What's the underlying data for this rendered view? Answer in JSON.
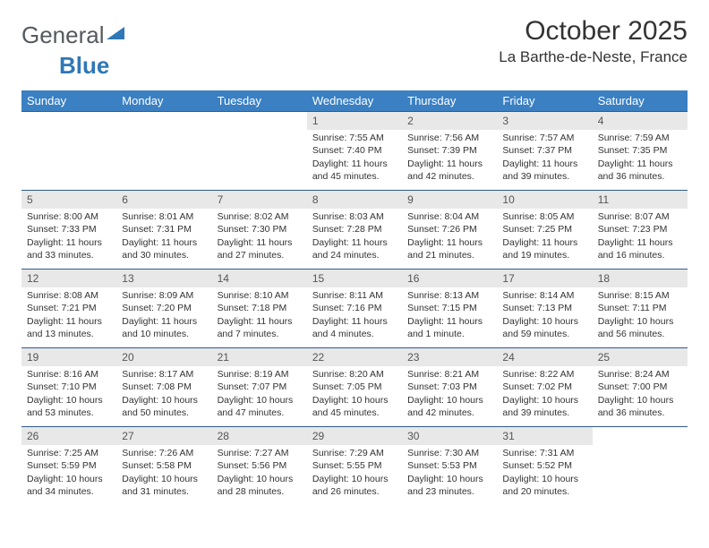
{
  "brand": {
    "general": "General",
    "blue": "Blue"
  },
  "title": {
    "month": "October 2025",
    "location": "La Barthe-de-Neste, France"
  },
  "colors": {
    "header_bg": "#3a80c3",
    "header_text": "#ffffff",
    "daynum_bg": "#e8e8e8",
    "row_border": "#2f5a8a",
    "body_text": "#333333",
    "logo_gray": "#555a5f",
    "logo_blue": "#2f78b7"
  },
  "weekdays": [
    "Sunday",
    "Monday",
    "Tuesday",
    "Wednesday",
    "Thursday",
    "Friday",
    "Saturday"
  ],
  "weeks": [
    [
      {
        "n": "",
        "empty": true
      },
      {
        "n": "",
        "empty": true
      },
      {
        "n": "",
        "empty": true
      },
      {
        "n": "1",
        "sunrise": "Sunrise: 7:55 AM",
        "sunset": "Sunset: 7:40 PM",
        "daylight": "Daylight: 11 hours and 45 minutes."
      },
      {
        "n": "2",
        "sunrise": "Sunrise: 7:56 AM",
        "sunset": "Sunset: 7:39 PM",
        "daylight": "Daylight: 11 hours and 42 minutes."
      },
      {
        "n": "3",
        "sunrise": "Sunrise: 7:57 AM",
        "sunset": "Sunset: 7:37 PM",
        "daylight": "Daylight: 11 hours and 39 minutes."
      },
      {
        "n": "4",
        "sunrise": "Sunrise: 7:59 AM",
        "sunset": "Sunset: 7:35 PM",
        "daylight": "Daylight: 11 hours and 36 minutes."
      }
    ],
    [
      {
        "n": "5",
        "sunrise": "Sunrise: 8:00 AM",
        "sunset": "Sunset: 7:33 PM",
        "daylight": "Daylight: 11 hours and 33 minutes."
      },
      {
        "n": "6",
        "sunrise": "Sunrise: 8:01 AM",
        "sunset": "Sunset: 7:31 PM",
        "daylight": "Daylight: 11 hours and 30 minutes."
      },
      {
        "n": "7",
        "sunrise": "Sunrise: 8:02 AM",
        "sunset": "Sunset: 7:30 PM",
        "daylight": "Daylight: 11 hours and 27 minutes."
      },
      {
        "n": "8",
        "sunrise": "Sunrise: 8:03 AM",
        "sunset": "Sunset: 7:28 PM",
        "daylight": "Daylight: 11 hours and 24 minutes."
      },
      {
        "n": "9",
        "sunrise": "Sunrise: 8:04 AM",
        "sunset": "Sunset: 7:26 PM",
        "daylight": "Daylight: 11 hours and 21 minutes."
      },
      {
        "n": "10",
        "sunrise": "Sunrise: 8:05 AM",
        "sunset": "Sunset: 7:25 PM",
        "daylight": "Daylight: 11 hours and 19 minutes."
      },
      {
        "n": "11",
        "sunrise": "Sunrise: 8:07 AM",
        "sunset": "Sunset: 7:23 PM",
        "daylight": "Daylight: 11 hours and 16 minutes."
      }
    ],
    [
      {
        "n": "12",
        "sunrise": "Sunrise: 8:08 AM",
        "sunset": "Sunset: 7:21 PM",
        "daylight": "Daylight: 11 hours and 13 minutes."
      },
      {
        "n": "13",
        "sunrise": "Sunrise: 8:09 AM",
        "sunset": "Sunset: 7:20 PM",
        "daylight": "Daylight: 11 hours and 10 minutes."
      },
      {
        "n": "14",
        "sunrise": "Sunrise: 8:10 AM",
        "sunset": "Sunset: 7:18 PM",
        "daylight": "Daylight: 11 hours and 7 minutes."
      },
      {
        "n": "15",
        "sunrise": "Sunrise: 8:11 AM",
        "sunset": "Sunset: 7:16 PM",
        "daylight": "Daylight: 11 hours and 4 minutes."
      },
      {
        "n": "16",
        "sunrise": "Sunrise: 8:13 AM",
        "sunset": "Sunset: 7:15 PM",
        "daylight": "Daylight: 11 hours and 1 minute."
      },
      {
        "n": "17",
        "sunrise": "Sunrise: 8:14 AM",
        "sunset": "Sunset: 7:13 PM",
        "daylight": "Daylight: 10 hours and 59 minutes."
      },
      {
        "n": "18",
        "sunrise": "Sunrise: 8:15 AM",
        "sunset": "Sunset: 7:11 PM",
        "daylight": "Daylight: 10 hours and 56 minutes."
      }
    ],
    [
      {
        "n": "19",
        "sunrise": "Sunrise: 8:16 AM",
        "sunset": "Sunset: 7:10 PM",
        "daylight": "Daylight: 10 hours and 53 minutes."
      },
      {
        "n": "20",
        "sunrise": "Sunrise: 8:17 AM",
        "sunset": "Sunset: 7:08 PM",
        "daylight": "Daylight: 10 hours and 50 minutes."
      },
      {
        "n": "21",
        "sunrise": "Sunrise: 8:19 AM",
        "sunset": "Sunset: 7:07 PM",
        "daylight": "Daylight: 10 hours and 47 minutes."
      },
      {
        "n": "22",
        "sunrise": "Sunrise: 8:20 AM",
        "sunset": "Sunset: 7:05 PM",
        "daylight": "Daylight: 10 hours and 45 minutes."
      },
      {
        "n": "23",
        "sunrise": "Sunrise: 8:21 AM",
        "sunset": "Sunset: 7:03 PM",
        "daylight": "Daylight: 10 hours and 42 minutes."
      },
      {
        "n": "24",
        "sunrise": "Sunrise: 8:22 AM",
        "sunset": "Sunset: 7:02 PM",
        "daylight": "Daylight: 10 hours and 39 minutes."
      },
      {
        "n": "25",
        "sunrise": "Sunrise: 8:24 AM",
        "sunset": "Sunset: 7:00 PM",
        "daylight": "Daylight: 10 hours and 36 minutes."
      }
    ],
    [
      {
        "n": "26",
        "sunrise": "Sunrise: 7:25 AM",
        "sunset": "Sunset: 5:59 PM",
        "daylight": "Daylight: 10 hours and 34 minutes."
      },
      {
        "n": "27",
        "sunrise": "Sunrise: 7:26 AM",
        "sunset": "Sunset: 5:58 PM",
        "daylight": "Daylight: 10 hours and 31 minutes."
      },
      {
        "n": "28",
        "sunrise": "Sunrise: 7:27 AM",
        "sunset": "Sunset: 5:56 PM",
        "daylight": "Daylight: 10 hours and 28 minutes."
      },
      {
        "n": "29",
        "sunrise": "Sunrise: 7:29 AM",
        "sunset": "Sunset: 5:55 PM",
        "daylight": "Daylight: 10 hours and 26 minutes."
      },
      {
        "n": "30",
        "sunrise": "Sunrise: 7:30 AM",
        "sunset": "Sunset: 5:53 PM",
        "daylight": "Daylight: 10 hours and 23 minutes."
      },
      {
        "n": "31",
        "sunrise": "Sunrise: 7:31 AM",
        "sunset": "Sunset: 5:52 PM",
        "daylight": "Daylight: 10 hours and 20 minutes."
      },
      {
        "n": "",
        "empty": true
      }
    ]
  ]
}
